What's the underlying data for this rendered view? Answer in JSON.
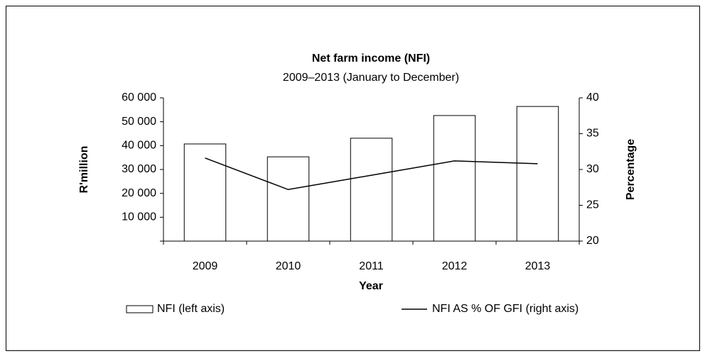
{
  "chart_data": {
    "type": "bar_line",
    "title": "Net farm income (NFI)",
    "subtitle": "2009–2013 (January to December)",
    "y_label": "R'million",
    "y2_label": "Percentage",
    "x_label": "Year",
    "categories": [
      "2009",
      "2010",
      "2011",
      "2012",
      "2013"
    ],
    "series": [
      {
        "name": "NFI (left axis)",
        "type": "bar",
        "color": "#ffffff",
        "values": [
          40700,
          35300,
          43100,
          52600,
          56400
        ]
      },
      {
        "name": "NFI AS % OF GFI (right axis)",
        "type": "line",
        "axis": "y2",
        "color": "#000000",
        "values": [
          31.6,
          27.2,
          29.2,
          31.2,
          30.8
        ]
      }
    ],
    "ylim": [
      0,
      60000
    ],
    "yticks": [
      0,
      {
        "value": 10000,
        "label": "10 000"
      },
      {
        "value": 20000,
        "label": "20 000"
      },
      {
        "value": 30000,
        "label": "30 000"
      },
      {
        "value": 40000,
        "label": "40 000"
      },
      {
        "value": 50000,
        "label": "50 000"
      },
      {
        "value": 60000,
        "label": "60 000"
      }
    ],
    "y2lim": [
      20,
      40
    ],
    "y2ticks": [
      20,
      25,
      30,
      35,
      40
    ],
    "grid": false,
    "legend": "bottom"
  }
}
